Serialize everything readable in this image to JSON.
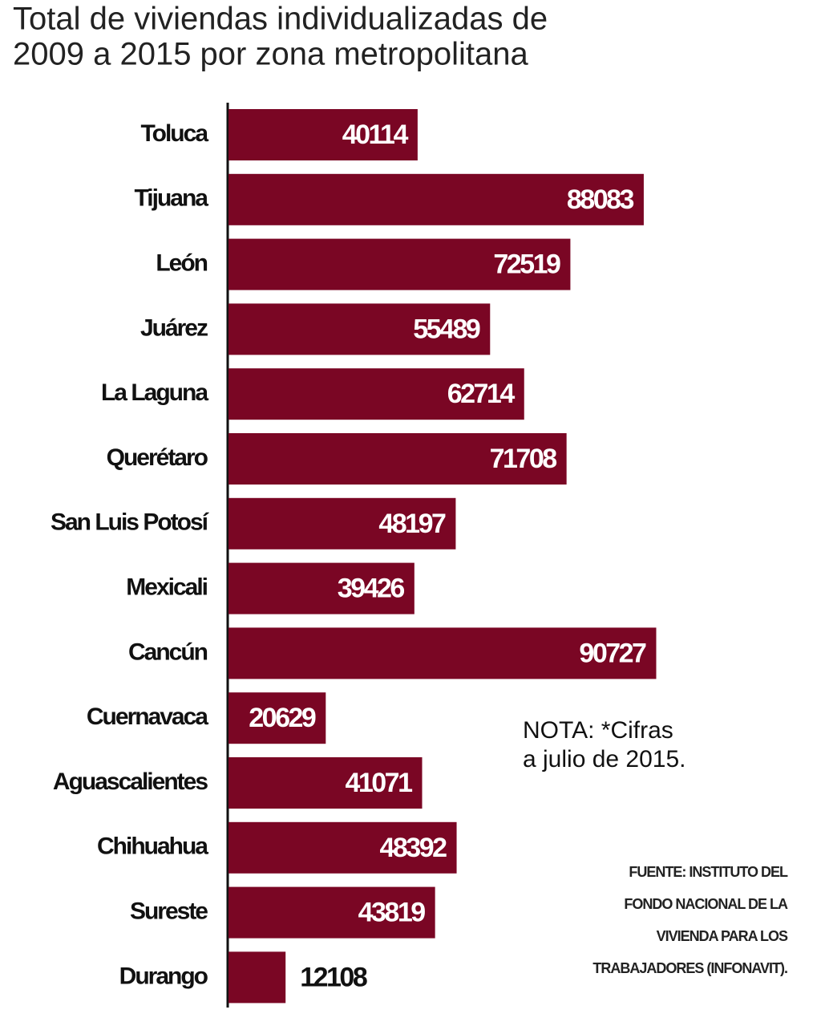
{
  "chart_data": {
    "type": "hbar",
    "title_lines": [
      "Total de viviendas individualizadas de",
      "2009 a 2015 por zona metropolitana"
    ],
    "categories": [
      "Toluca",
      "Tijuana",
      "León",
      "Juárez",
      "La Laguna",
      "Querétaro",
      "San Luis Potosí",
      "Mexicali",
      "Cancún",
      "Cuernavaca",
      "Aguascalientes",
      "Chihuahua",
      "Sureste",
      "Durango"
    ],
    "values": [
      40114,
      88083,
      72519,
      55489,
      62714,
      71708,
      48197,
      39426,
      90727,
      20629,
      41071,
      48392,
      43819,
      12108
    ],
    "color": "#7a0624",
    "xlim": [
      0,
      100000
    ],
    "note_lines": [
      "NOTA: *Cifras",
      "a julio de 2015."
    ],
    "source_lines": [
      "FUENTE: INSTITUTO DEL",
      "FONDO NACIONAL DE LA",
      "VIVIENDA PARA LOS",
      "TRABAJADORES (INFONAVIT)."
    ]
  }
}
